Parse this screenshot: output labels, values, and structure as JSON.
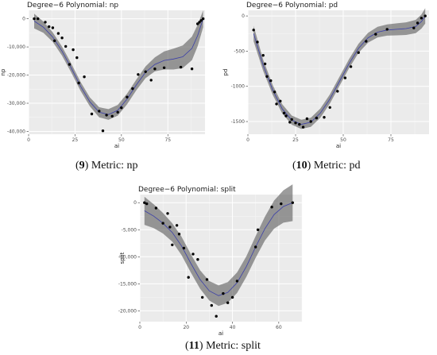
{
  "panel_labels": [
    {
      "num": "9",
      "text": "Metric: np"
    },
    {
      "num": "10",
      "text": "Metric: pd"
    },
    {
      "num": "11",
      "text": "Metric: split"
    }
  ],
  "chart_data": [
    {
      "type": "scatter",
      "title": "Degree−6 Polynomial: np",
      "xlabel": "ai",
      "ylabel": "np",
      "xlim": [
        0,
        95
      ],
      "ylim": [
        -41000,
        3000
      ],
      "xticks": [
        {
          "v": 0,
          "label": "0"
        },
        {
          "v": 25,
          "label": "25"
        },
        {
          "v": 50,
          "label": "50"
        },
        {
          "v": 75,
          "label": "75"
        }
      ],
      "yticks": [
        {
          "v": 0,
          "label": "0"
        },
        {
          "v": -10000,
          "label": "-10,000"
        },
        {
          "v": -20000,
          "label": "-20,000"
        },
        {
          "v": -30000,
          "label": "-30,000"
        },
        {
          "v": -40000,
          "label": "-40,000"
        }
      ],
      "grid": true,
      "points": [
        [
          3,
          0
        ],
        [
          5,
          0
        ],
        [
          9,
          -1200
        ],
        [
          11,
          -2800
        ],
        [
          13,
          -3200
        ],
        [
          14,
          -7800
        ],
        [
          16,
          -5200
        ],
        [
          18,
          -6800
        ],
        [
          20,
          -9800
        ],
        [
          22,
          -16200
        ],
        [
          24,
          -11000
        ],
        [
          26,
          -13800
        ],
        [
          27,
          -22800
        ],
        [
          30,
          -20600
        ],
        [
          34,
          -33800
        ],
        [
          38,
          -32800
        ],
        [
          40,
          -39800
        ],
        [
          42,
          -34200
        ],
        [
          45,
          -34600
        ],
        [
          48,
          -33200
        ],
        [
          50,
          -31600
        ],
        [
          53,
          -27800
        ],
        [
          56,
          -24800
        ],
        [
          59,
          -19800
        ],
        [
          63,
          -18800
        ],
        [
          66,
          -21800
        ],
        [
          68,
          -17800
        ],
        [
          73,
          -17400
        ],
        [
          82,
          -17200
        ],
        [
          88,
          -17800
        ],
        [
          91,
          -1800
        ],
        [
          92,
          -1200
        ],
        [
          93,
          -600
        ],
        [
          94,
          0
        ]
      ],
      "fit": [
        [
          3,
          -800
        ],
        [
          8,
          -3000
        ],
        [
          13,
          -6500
        ],
        [
          18,
          -11500
        ],
        [
          23,
          -17500
        ],
        [
          28,
          -24000
        ],
        [
          33,
          -29500
        ],
        [
          38,
          -33200
        ],
        [
          43,
          -34000
        ],
        [
          48,
          -32500
        ],
        [
          53,
          -28500
        ],
        [
          58,
          -23500
        ],
        [
          63,
          -19000
        ],
        [
          68,
          -16200
        ],
        [
          73,
          -14800
        ],
        [
          78,
          -14300
        ],
        [
          83,
          -13500
        ],
        [
          88,
          -10500
        ],
        [
          91,
          -6000
        ],
        [
          94,
          0
        ]
      ],
      "ribbon_halfwidth": [
        2600,
        2000,
        1700,
        1600,
        1600,
        1600,
        1600,
        1800,
        1900,
        1900,
        1900,
        1900,
        2100,
        2500,
        3200,
        3700,
        4000,
        4200,
        3800,
        3000
      ]
    },
    {
      "type": "scatter",
      "title": "Degree−6 Polynomial: pd",
      "xlabel": "ai",
      "ylabel": "pd",
      "xlim": [
        0,
        95
      ],
      "ylim": [
        -1680,
        80
      ],
      "xticks": [
        {
          "v": 0,
          "label": "0"
        },
        {
          "v": 25,
          "label": "25"
        },
        {
          "v": 50,
          "label": "50"
        },
        {
          "v": 75,
          "label": "75"
        }
      ],
      "yticks": [
        {
          "v": 0,
          "label": "0"
        },
        {
          "v": -500,
          "label": "-500"
        },
        {
          "v": -1000,
          "label": "-1000"
        },
        {
          "v": -1500,
          "label": "-1500"
        }
      ],
      "grid": true,
      "points": [
        [
          3,
          -200
        ],
        [
          5,
          -370
        ],
        [
          8,
          -560
        ],
        [
          9,
          -680
        ],
        [
          10,
          -860
        ],
        [
          12,
          -920
        ],
        [
          14,
          -1080
        ],
        [
          15,
          -1250
        ],
        [
          17,
          -1210
        ],
        [
          19,
          -1380
        ],
        [
          20,
          -1420
        ],
        [
          22,
          -1510
        ],
        [
          23,
          -1470
        ],
        [
          25,
          -1520
        ],
        [
          27,
          -1540
        ],
        [
          29,
          -1580
        ],
        [
          31,
          -1460
        ],
        [
          33,
          -1500
        ],
        [
          36,
          -1450
        ],
        [
          40,
          -1440
        ],
        [
          43,
          -1300
        ],
        [
          47,
          -1070
        ],
        [
          51,
          -880
        ],
        [
          54,
          -720
        ],
        [
          58,
          -520
        ],
        [
          62,
          -360
        ],
        [
          67,
          -260
        ],
        [
          73,
          -190
        ],
        [
          87,
          -170
        ],
        [
          89,
          -100
        ],
        [
          91,
          -30
        ],
        [
          93,
          0
        ]
      ],
      "fit": [
        [
          3,
          -250
        ],
        [
          8,
          -700
        ],
        [
          13,
          -1050
        ],
        [
          18,
          -1320
        ],
        [
          23,
          -1480
        ],
        [
          28,
          -1540
        ],
        [
          33,
          -1510
        ],
        [
          38,
          -1380
        ],
        [
          43,
          -1180
        ],
        [
          48,
          -930
        ],
        [
          53,
          -680
        ],
        [
          58,
          -460
        ],
        [
          63,
          -310
        ],
        [
          68,
          -230
        ],
        [
          73,
          -200
        ],
        [
          78,
          -190
        ],
        [
          83,
          -180
        ],
        [
          88,
          -150
        ],
        [
          91,
          -80
        ],
        [
          93,
          0
        ]
      ],
      "ribbon_halfwidth": [
        110,
        80,
        70,
        65,
        65,
        65,
        65,
        65,
        65,
        65,
        65,
        65,
        70,
        75,
        80,
        85,
        90,
        95,
        100,
        110
      ]
    },
    {
      "type": "scatter",
      "title": "Degree−6 Polynomial: split",
      "xlabel": "ai",
      "ylabel": "split",
      "xlim": [
        0,
        70
      ],
      "ylim": [
        -22000,
        1500
      ],
      "xticks": [
        {
          "v": 0,
          "label": "0"
        },
        {
          "v": 20,
          "label": "20"
        },
        {
          "v": 40,
          "label": "40"
        },
        {
          "v": 60,
          "label": "60"
        }
      ],
      "yticks": [
        {
          "v": 0,
          "label": "0"
        },
        {
          "v": -5000,
          "label": "-5,000"
        },
        {
          "v": -10000,
          "label": "-10,000"
        },
        {
          "v": -15000,
          "label": "-15,000"
        },
        {
          "v": -20000,
          "label": "-20,000"
        }
      ],
      "grid": true,
      "points": [
        [
          2,
          0
        ],
        [
          3,
          -200
        ],
        [
          7,
          -1000
        ],
        [
          10,
          -3800
        ],
        [
          12,
          -2000
        ],
        [
          13,
          -4500
        ],
        [
          14,
          -7800
        ],
        [
          16,
          -4200
        ],
        [
          17,
          -5800
        ],
        [
          19,
          -8400
        ],
        [
          21,
          -13800
        ],
        [
          23,
          -9500
        ],
        [
          25,
          -10500
        ],
        [
          27,
          -17500
        ],
        [
          29,
          -14200
        ],
        [
          31,
          -19000
        ],
        [
          33,
          -21000
        ],
        [
          36,
          -16800
        ],
        [
          38,
          -18500
        ],
        [
          40,
          -17500
        ],
        [
          42,
          -14500
        ],
        [
          50,
          -8200
        ],
        [
          51,
          -5000
        ],
        [
          57,
          -800
        ],
        [
          61,
          -200
        ],
        [
          66,
          0
        ]
      ],
      "fit": [
        [
          2,
          -1500
        ],
        [
          6,
          -2500
        ],
        [
          10,
          -3800
        ],
        [
          14,
          -5500
        ],
        [
          18,
          -8000
        ],
        [
          22,
          -11200
        ],
        [
          26,
          -14200
        ],
        [
          30,
          -16300
        ],
        [
          34,
          -17200
        ],
        [
          38,
          -16600
        ],
        [
          42,
          -14800
        ],
        [
          46,
          -11800
        ],
        [
          50,
          -8200
        ],
        [
          54,
          -4800
        ],
        [
          58,
          -2200
        ],
        [
          62,
          -700
        ],
        [
          66,
          0
        ]
      ],
      "ribbon_halfwidth": [
        2600,
        2200,
        1900,
        1700,
        1700,
        1700,
        1700,
        1800,
        1900,
        1900,
        1900,
        1900,
        2000,
        2200,
        2600,
        3000,
        3400
      ]
    }
  ]
}
